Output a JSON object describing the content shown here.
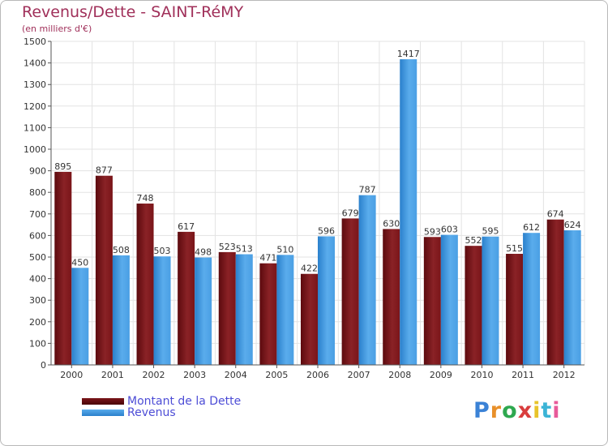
{
  "title": "Revenus/Dette - SAINT-RéMY",
  "subtitle": "(en milliers d'€)",
  "chart_data": {
    "type": "bar",
    "categories": [
      "2000",
      "2001",
      "2002",
      "2003",
      "2004",
      "2005",
      "2006",
      "2007",
      "2008",
      "2009",
      "2010",
      "2011",
      "2012"
    ],
    "series": [
      {
        "name": "Montant de la Dette",
        "color": "#7a1519",
        "values": [
          895,
          877,
          748,
          617,
          523,
          471,
          422,
          679,
          630,
          593,
          552,
          515,
          674
        ]
      },
      {
        "name": "Revenus",
        "color": "#3d97e0",
        "values": [
          450,
          508,
          503,
          498,
          513,
          510,
          596,
          787,
          1417,
          603,
          595,
          612,
          624
        ]
      }
    ],
    "ylim": [
      0,
      1500
    ],
    "yticks": [
      "0",
      "100",
      "200",
      "300",
      "400",
      "500",
      "600",
      "700",
      "800",
      "900",
      "1000",
      "1100",
      "1200",
      "1300",
      "1400",
      "1500"
    ],
    "grid": true,
    "legend_position": "bottom-left"
  },
  "brand": {
    "text": "Proxiti",
    "colors": [
      "#3b82d6",
      "#e8902a",
      "#2ea84f",
      "#d93d3d",
      "#e8c32a",
      "#3bb4d6",
      "#e85a9a"
    ]
  }
}
